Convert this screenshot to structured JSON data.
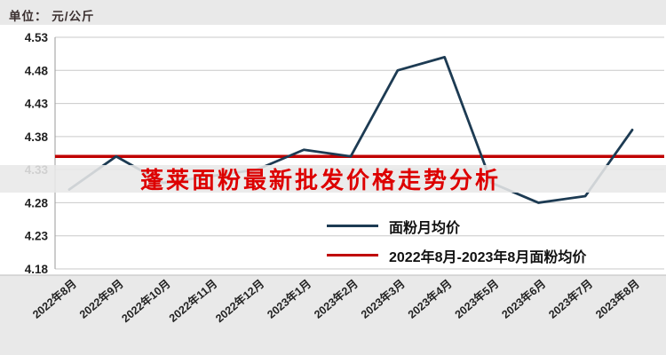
{
  "chart": {
    "unit_label": "单位： 元/公斤",
    "title_overlay": "蓬莱面粉最新批发价格走势分析"
  },
  "chart_data": {
    "type": "line",
    "title": "蓬莱面粉最新批发价格走势分析",
    "categories": [
      "2022年8月",
      "2022年9月",
      "2022年10月",
      "2022年11月",
      "2022年12月",
      "2023年1月",
      "2023年2月",
      "2023年3月",
      "2023年4月",
      "2023年5月",
      "2023年6月",
      "2023年7月",
      "2023年8月"
    ],
    "series": [
      {
        "name": "面粉月均价",
        "color": "#1d3b53",
        "values": [
          4.3,
          4.35,
          4.31,
          4.32,
          4.33,
          4.36,
          4.35,
          4.48,
          4.5,
          4.31,
          4.28,
          4.29,
          4.39
        ]
      }
    ],
    "reference_line": {
      "name": "2022年8月-2023年8月面粉均价",
      "color": "#c00000",
      "value": 4.35
    },
    "xlabel": "",
    "ylabel": "元/公斤",
    "ylim": [
      4.18,
      4.53
    ],
    "yticks": [
      4.53,
      4.48,
      4.43,
      4.38,
      4.33,
      4.28,
      4.23,
      4.18
    ],
    "grid": true,
    "legend_position": "inside-bottom-right"
  },
  "colors": {
    "accent_red": "#c00000",
    "line_dark": "#1d3b53",
    "background": "#e9e9e9",
    "plot_background": "#ffffff",
    "grid": "#c9c9c9",
    "text": "#222222",
    "title_red": "#dd0000"
  }
}
